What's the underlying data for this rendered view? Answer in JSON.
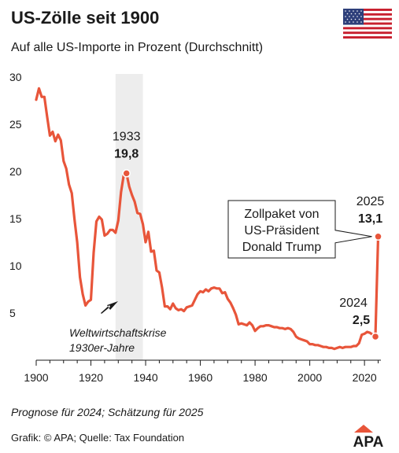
{
  "header": {
    "title": "US-Zölle seit 1900",
    "subtitle": "Auf alle US-Importe in Prozent (Durchschnitt)"
  },
  "flag_icon": "us-flag-icon",
  "footer": {
    "note": "Prognose für 2024; Schätzung für 2025",
    "source": "Grafik: © APA; Quelle: Tax Foundation",
    "logo_text": "APA"
  },
  "colors": {
    "line": "#E8553A",
    "shade": "#EDEDED",
    "logo": "#E8553A"
  },
  "chart_data": {
    "type": "line",
    "title": "US-Zölle seit 1900",
    "subtitle": "Auf alle US-Importe in Prozent (Durchschnitt)",
    "xlim": [
      1900,
      2026
    ],
    "ylim": [
      0,
      30
    ],
    "x_ticks": [
      1900,
      1920,
      1940,
      1960,
      1980,
      2000,
      2020
    ],
    "y_ticks": [
      5,
      10,
      15,
      20,
      25,
      30
    ],
    "grid": false,
    "series": [
      {
        "points": [
          [
            1900,
            27.6
          ],
          [
            1901,
            28.8
          ],
          [
            1902,
            27.9
          ],
          [
            1903,
            27.9
          ],
          [
            1904,
            25.8
          ],
          [
            1905,
            23.8
          ],
          [
            1906,
            24.2
          ],
          [
            1907,
            23.2
          ],
          [
            1908,
            23.9
          ],
          [
            1909,
            23.3
          ],
          [
            1910,
            21.1
          ],
          [
            1911,
            20.3
          ],
          [
            1912,
            18.6
          ],
          [
            1913,
            17.7
          ],
          [
            1914,
            14.9
          ],
          [
            1915,
            12.5
          ],
          [
            1916,
            8.8
          ],
          [
            1917,
            7.0
          ],
          [
            1918,
            5.8
          ],
          [
            1919,
            6.2
          ],
          [
            1920,
            6.4
          ],
          [
            1921,
            11.4
          ],
          [
            1922,
            14.7
          ],
          [
            1923,
            15.2
          ],
          [
            1924,
            14.9
          ],
          [
            1925,
            13.2
          ],
          [
            1926,
            13.4
          ],
          [
            1927,
            13.8
          ],
          [
            1928,
            13.8
          ],
          [
            1929,
            13.5
          ],
          [
            1930,
            14.8
          ],
          [
            1931,
            17.8
          ],
          [
            1932,
            19.6
          ],
          [
            1933,
            19.8
          ],
          [
            1934,
            18.4
          ],
          [
            1935,
            17.5
          ],
          [
            1936,
            16.8
          ],
          [
            1937,
            15.6
          ],
          [
            1938,
            15.5
          ],
          [
            1939,
            14.4
          ],
          [
            1940,
            12.5
          ],
          [
            1941,
            13.6
          ],
          [
            1942,
            11.5
          ],
          [
            1943,
            11.6
          ],
          [
            1944,
            9.5
          ],
          [
            1945,
            9.3
          ],
          [
            1946,
            7.7
          ],
          [
            1947,
            5.7
          ],
          [
            1948,
            5.7
          ],
          [
            1949,
            5.4
          ],
          [
            1950,
            6.0
          ],
          [
            1951,
            5.5
          ],
          [
            1952,
            5.3
          ],
          [
            1953,
            5.4
          ],
          [
            1954,
            5.2
          ],
          [
            1955,
            5.6
          ],
          [
            1956,
            5.7
          ],
          [
            1957,
            5.8
          ],
          [
            1958,
            6.4
          ],
          [
            1959,
            7.0
          ],
          [
            1960,
            7.3
          ],
          [
            1961,
            7.2
          ],
          [
            1962,
            7.5
          ],
          [
            1963,
            7.3
          ],
          [
            1964,
            7.6
          ],
          [
            1965,
            7.7
          ],
          [
            1966,
            7.6
          ],
          [
            1967,
            7.6
          ],
          [
            1968,
            7.1
          ],
          [
            1969,
            7.2
          ],
          [
            1970,
            6.5
          ],
          [
            1971,
            6.1
          ],
          [
            1972,
            5.5
          ],
          [
            1973,
            4.8
          ],
          [
            1974,
            3.8
          ],
          [
            1975,
            3.9
          ],
          [
            1976,
            3.8
          ],
          [
            1977,
            3.7
          ],
          [
            1978,
            4.0
          ],
          [
            1979,
            3.7
          ],
          [
            1980,
            3.1
          ],
          [
            1981,
            3.4
          ],
          [
            1982,
            3.6
          ],
          [
            1983,
            3.6
          ],
          [
            1984,
            3.7
          ],
          [
            1985,
            3.7
          ],
          [
            1986,
            3.6
          ],
          [
            1987,
            3.5
          ],
          [
            1988,
            3.5
          ],
          [
            1989,
            3.4
          ],
          [
            1990,
            3.4
          ],
          [
            1991,
            3.3
          ],
          [
            1992,
            3.4
          ],
          [
            1993,
            3.3
          ],
          [
            1994,
            3.0
          ],
          [
            1995,
            2.5
          ],
          [
            1996,
            2.3
          ],
          [
            1997,
            2.2
          ],
          [
            1998,
            2.1
          ],
          [
            1999,
            2.0
          ],
          [
            2000,
            1.7
          ],
          [
            2001,
            1.7
          ],
          [
            2002,
            1.6
          ],
          [
            2003,
            1.6
          ],
          [
            2004,
            1.5
          ],
          [
            2005,
            1.4
          ],
          [
            2006,
            1.4
          ],
          [
            2007,
            1.3
          ],
          [
            2008,
            1.3
          ],
          [
            2009,
            1.2
          ],
          [
            2010,
            1.3
          ],
          [
            2011,
            1.4
          ],
          [
            2012,
            1.3
          ],
          [
            2013,
            1.4
          ],
          [
            2014,
            1.4
          ],
          [
            2015,
            1.4
          ],
          [
            2016,
            1.5
          ],
          [
            2017,
            1.5
          ],
          [
            2018,
            1.8
          ],
          [
            2019,
            2.7
          ],
          [
            2020,
            2.8
          ],
          [
            2021,
            3.0
          ],
          [
            2022,
            2.9
          ],
          [
            2023,
            2.7
          ],
          [
            2024,
            2.5
          ],
          [
            2025,
            13.1
          ]
        ]
      }
    ],
    "shaded_region": {
      "from": 1929,
      "to": 1939
    },
    "annotations": [
      {
        "id": "a1933",
        "year": "1933",
        "value": "19,8",
        "x": 1933,
        "y": 19.8
      },
      {
        "id": "a2024",
        "year": "2024",
        "value": "2,5",
        "x": 2024,
        "y": 2.5
      },
      {
        "id": "a2025",
        "year": "2025",
        "value": "13,1",
        "x": 2025,
        "y": 13.1
      }
    ],
    "crisis_label": [
      "Weltwirtschaftskrise",
      "1930er-Jahre"
    ],
    "callout_box": [
      "Zollpaket von",
      "US-Präsident",
      "Donald Trump"
    ]
  }
}
